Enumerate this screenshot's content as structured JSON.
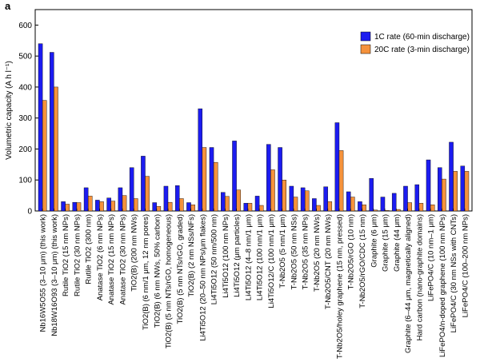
{
  "panel_label": "a",
  "chart_data": {
    "type": "bar",
    "title": "",
    "xlabel": "",
    "ylabel": "Volumetric capacity (A h l⁻¹)",
    "ylim": [
      0,
      650
    ],
    "yticks": [
      0,
      100,
      200,
      300,
      400,
      500,
      600
    ],
    "legend_position": "top-right",
    "categories": [
      "Nb16W5O55 (3–10 μm) (this work)",
      "Nb18W16O93 (3–10 μm) (this work)",
      "Rutile TiO2 (15 nm NPs)",
      "Rutile TiO2 (30 nm NPs)",
      "Rutile TiO2 (300 nm)",
      "Anatase TiO2 (6 nm NPs)",
      "Anatase TiO2 (15 nm NPs)",
      "Anatase TiO2 (30 nm NPs)",
      "TiO2(B) (200 nm NWs)",
      "TiO2(B) (6 nm/1 μm, 12 nm pores)",
      "TiO2(B) (6 nm NWs, 50% carbon)",
      "TiO2(B) (5 nm NTs/rGO, homogeneous)",
      "TiO2(B) (5 nm NTs/rGO, graded)",
      "TiO2(B) (2 nm NSs/NFs)",
      "Li4Ti5O12 (20–50 nm NPs/μm flakes)",
      "Li4Ti5O12 (50 nm/500 nm)",
      "Li4Ti5O12 (100 nm NPs)",
      "Li4Ti5O12 (μm particles)",
      "Li4Ti5O12 (4–8 nm/1 μm)",
      "Li4Ti5O12 (100 nm/1 μm)",
      "Li4Ti5O12/C (100 nm/1 μm)",
      "T-Nb2O5 (5 nm/1 μm)",
      "T-Nb2O5 (50 nm NSs)",
      "T-Nb2O5 (35 nm NPs)",
      "T-Nb2O5 (20 nm NWs)",
      "T-Nb2O5/CNT (20 nm NWs)",
      "T-Nb2O5/holey graphene (15 nm, pressed)",
      "T-Nb2O5/rGO (10 nm)",
      "T-Nb2O5/rGO/CDC (15 nm)",
      "Graphite (6 μm)",
      "Graphite (15 μm)",
      "Graphite (44 μm)",
      "Graphite (6–44 μm, magnetically aligned)",
      "Hard carbon (nano-graphite domains)",
      "LiFePO4/C (10 nm–1 μm)",
      "LiFePO4/n-doped graphene (100 nm NPs)",
      "LiFePO4/C (30 nm NSs with CNTs)",
      "LiFePO4/C (100–200 nm NPs)"
    ],
    "series": [
      {
        "name": "1C rate (60-min discharge)",
        "color": "#1c1cf0",
        "values": [
          540,
          512,
          30,
          28,
          75,
          35,
          42,
          75,
          140,
          177,
          27,
          80,
          82,
          27,
          330,
          205,
          60,
          226,
          25,
          48,
          215,
          205,
          80,
          75,
          40,
          78,
          285,
          62,
          30,
          105,
          45,
          57,
          80,
          85,
          165,
          140,
          222,
          145
        ]
      },
      {
        "name": "20C rate (3-min discharge)",
        "color": "#f5923c",
        "values": [
          357,
          400,
          22,
          27,
          48,
          30,
          32,
          50,
          40,
          112,
          15,
          28,
          40,
          20,
          205,
          157,
          47,
          68,
          25,
          18,
          133,
          100,
          45,
          65,
          18,
          30,
          195,
          45,
          20,
          3,
          2,
          5,
          27,
          25,
          20,
          103,
          128,
          128
        ]
      }
    ]
  }
}
